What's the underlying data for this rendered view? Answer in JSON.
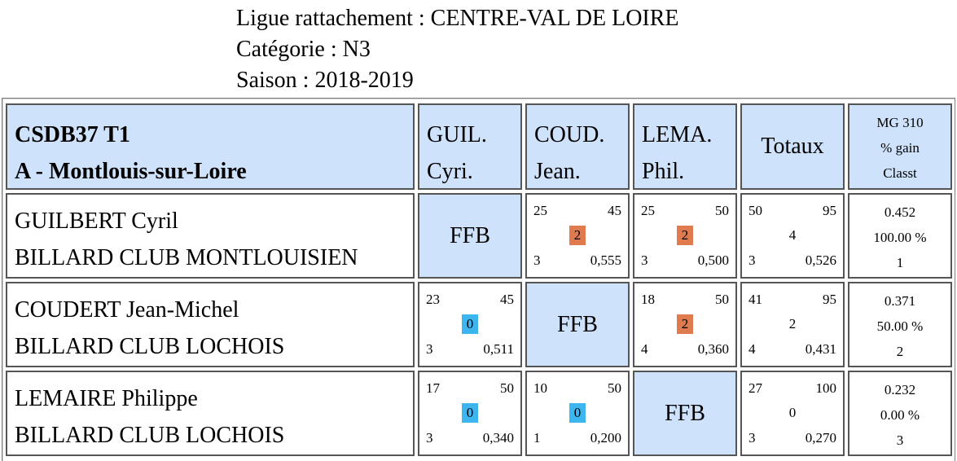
{
  "header": {
    "ligue": "Ligue rattachement : CENTRE-VAL DE LOIRE",
    "categorie": "Catégorie : N3",
    "saison": "Saison : 2018-2019"
  },
  "table": {
    "team_line1": "CSDB37 T1",
    "team_line2": "A - Montlouis-sur-Loire",
    "columns": [
      {
        "l1": "GUIL.",
        "l2": "Cyri."
      },
      {
        "l1": "COUD.",
        "l2": "Jean."
      },
      {
        "l1": "LEMA.",
        "l2": "Phil."
      }
    ],
    "totaux": "Totaux",
    "mg_header": {
      "l1": "MG 310",
      "l2": "% gain",
      "l3": "Classt"
    },
    "ffb": "FFB",
    "colors": {
      "win": "#e07a4f",
      "loss": "#3db6f0",
      "header_bg": "#cfe2fb"
    },
    "rows": [
      {
        "name": "GUILBERT Cyril",
        "club": "BILLARD CLUB MONTLOUISIEN",
        "matches": [
          null,
          {
            "points": "25",
            "distance": "45",
            "pts": "2",
            "result": "win",
            "reprises": "3",
            "moyenne": "0,555"
          },
          {
            "points": "25",
            "distance": "50",
            "pts": "2",
            "result": "win",
            "reprises": "3",
            "moyenne": "0,500"
          }
        ],
        "total": {
          "points": "50",
          "distance": "95",
          "pts": "4",
          "reprises": "3",
          "moyenne": "0,526"
        },
        "mg": "0.452",
        "gain": "100.00 %",
        "classt": "1"
      },
      {
        "name": "COUDERT Jean-Michel",
        "club": "BILLARD CLUB LOCHOIS",
        "matches": [
          {
            "points": "23",
            "distance": "45",
            "pts": "0",
            "result": "loss",
            "reprises": "3",
            "moyenne": "0,511"
          },
          null,
          {
            "points": "18",
            "distance": "50",
            "pts": "2",
            "result": "win",
            "reprises": "4",
            "moyenne": "0,360"
          }
        ],
        "total": {
          "points": "41",
          "distance": "95",
          "pts": "2",
          "reprises": "4",
          "moyenne": "0,431"
        },
        "mg": "0.371",
        "gain": "50.00 %",
        "classt": "2"
      },
      {
        "name": "LEMAIRE Philippe",
        "club": "BILLARD CLUB LOCHOIS",
        "matches": [
          {
            "points": "17",
            "distance": "50",
            "pts": "0",
            "result": "loss",
            "reprises": "3",
            "moyenne": "0,340"
          },
          {
            "points": "10",
            "distance": "50",
            "pts": "0",
            "result": "loss",
            "reprises": "1",
            "moyenne": "0,200"
          },
          null
        ],
        "total": {
          "points": "27",
          "distance": "100",
          "pts": "0",
          "reprises": "3",
          "moyenne": "0,270"
        },
        "mg": "0.232",
        "gain": "0.00 %",
        "classt": "3"
      }
    ]
  }
}
